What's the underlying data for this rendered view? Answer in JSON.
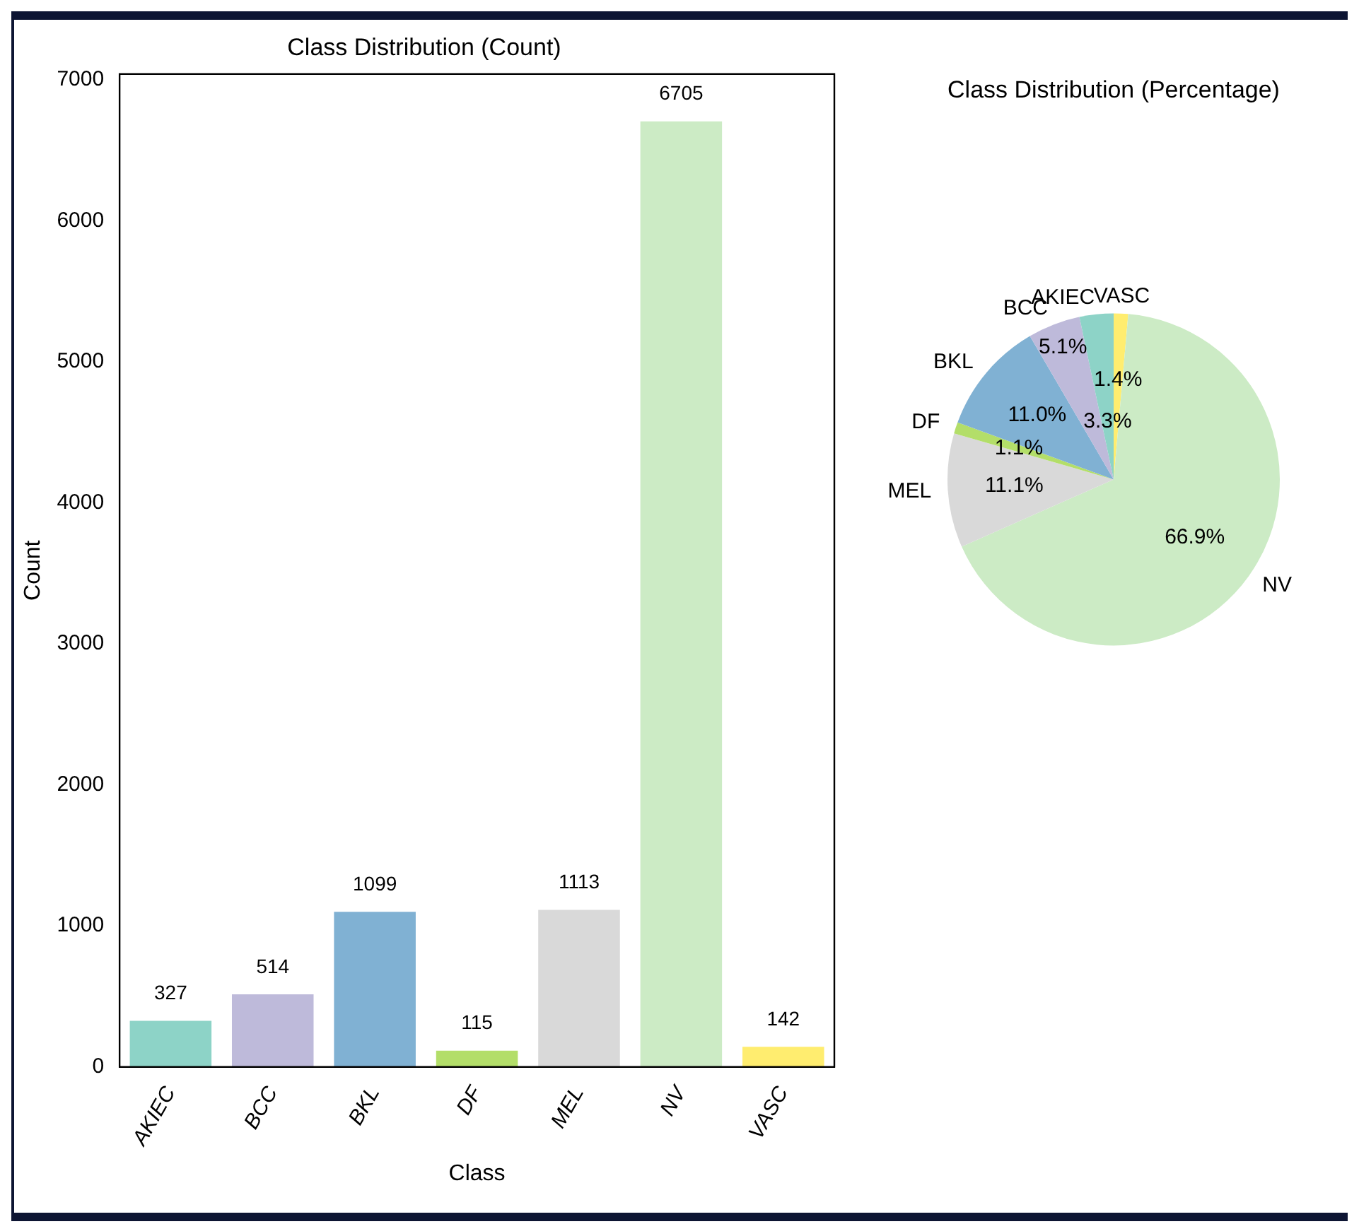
{
  "chart_data": [
    {
      "type": "bar",
      "title": "Class Distribution (Count)",
      "xlabel": "Class",
      "ylabel": "Count",
      "categories": [
        "AKIEC",
        "BCC",
        "BKL",
        "DF",
        "MEL",
        "NV",
        "VASC"
      ],
      "values": [
        327,
        514,
        1099,
        115,
        1113,
        6705,
        142
      ],
      "colors": [
        "#8dd3c7",
        "#bebada",
        "#80b1d3",
        "#b3de69",
        "#d9d9d9",
        "#ccebc5",
        "#ffed6f"
      ],
      "ylim": [
        0,
        7040
      ],
      "yticks": [
        0,
        1000,
        2000,
        3000,
        4000,
        5000,
        6000,
        7000
      ],
      "grid": false,
      "legend": false,
      "data_labels": true
    },
    {
      "type": "pie",
      "title": "Class Distribution (Percentage)",
      "categories": [
        "VASC",
        "NV",
        "MEL",
        "DF",
        "BKL",
        "BCC",
        "AKIEC"
      ],
      "values": [
        1.4,
        66.9,
        11.1,
        1.1,
        11.0,
        5.1,
        3.3
      ],
      "value_labels": [
        "1.4%",
        "66.9%",
        "11.1%",
        "1.1%",
        "11.0%",
        "5.1%",
        "3.3%"
      ],
      "colors": [
        "#ffed6f",
        "#ccebc5",
        "#d9d9d9",
        "#b3de69",
        "#80b1d3",
        "#bebada",
        "#8dd3c7"
      ],
      "legend": false
    }
  ]
}
